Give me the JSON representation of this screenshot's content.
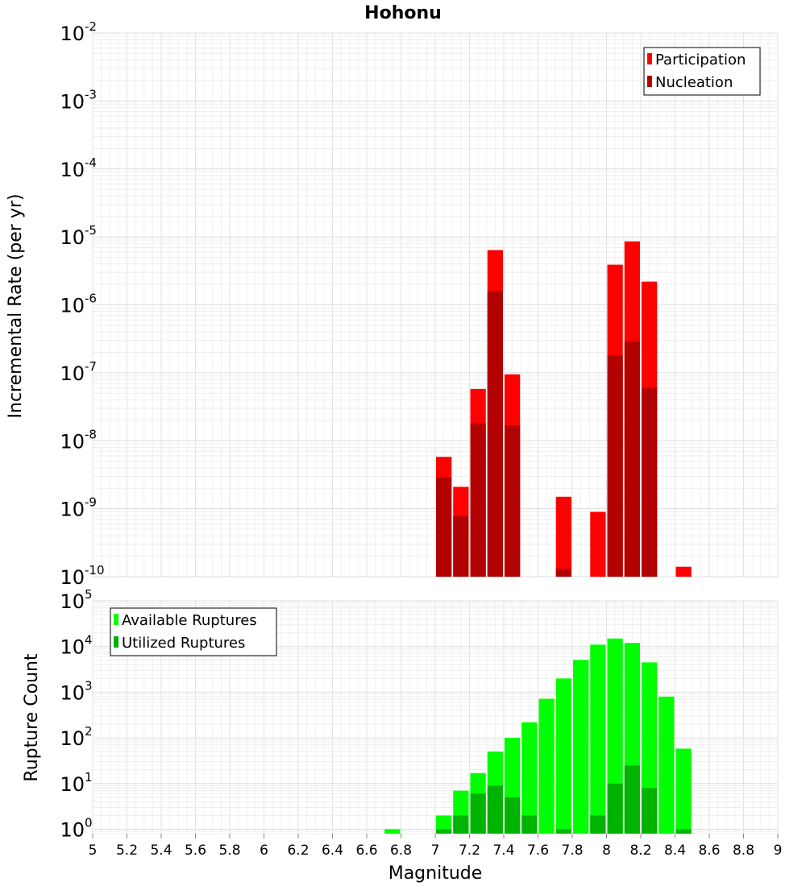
{
  "chart_data": [
    {
      "type": "bar",
      "title": "Hohonu",
      "ylabel": "Incremental Rate (per yr)",
      "xlabel": "",
      "xlim": [
        5,
        9
      ],
      "ylim": [
        1e-10,
        0.01
      ],
      "yscale": "log",
      "bin_width": 0.1,
      "legend_position": "top-right",
      "grid": true,
      "x": [
        7.05,
        7.15,
        7.25,
        7.35,
        7.45,
        7.75,
        7.95,
        8.05,
        8.15,
        8.25,
        8.45
      ],
      "series": [
        {
          "name": "Participation",
          "color": "#ff0000",
          "values": [
            5.8e-09,
            2.1e-09,
            5.8e-08,
            6.4e-06,
            9.5e-08,
            1.5e-09,
            9e-10,
            3.9e-06,
            8.6e-06,
            2.2e-06,
            1.4e-10
          ]
        },
        {
          "name": "Nucleation",
          "color": "#b30000",
          "values": [
            2.9e-09,
            7.8e-10,
            1.8e-08,
            1.6e-06,
            1.7e-08,
            1.3e-10,
            0,
            1.8e-07,
            2.9e-07,
            6e-08,
            0
          ]
        }
      ],
      "y_ticks": [
        {
          "base": "10",
          "exp": "-10"
        },
        {
          "base": "10",
          "exp": "-9"
        },
        {
          "base": "10",
          "exp": "-8"
        },
        {
          "base": "10",
          "exp": "-7"
        },
        {
          "base": "10",
          "exp": "-6"
        },
        {
          "base": "10",
          "exp": "-5"
        },
        {
          "base": "10",
          "exp": "-4"
        },
        {
          "base": "10",
          "exp": "-3"
        },
        {
          "base": "10",
          "exp": "-2"
        }
      ]
    },
    {
      "type": "bar",
      "title": "",
      "ylabel": "Rupture Count",
      "xlabel": "Magnitude",
      "xlim": [
        5,
        9
      ],
      "ylim": [
        0.8,
        100000.0
      ],
      "yscale": "log",
      "bin_width": 0.1,
      "legend_position": "top-left",
      "grid": true,
      "x": [
        6.75,
        7.05,
        7.15,
        7.25,
        7.35,
        7.45,
        7.55,
        7.65,
        7.75,
        7.85,
        7.95,
        8.05,
        8.15,
        8.25,
        8.35,
        8.45
      ],
      "series": [
        {
          "name": "Available Ruptures",
          "color": "#00ff00",
          "values": [
            1,
            2,
            7,
            17,
            50,
            100,
            220,
            720,
            2000,
            5100,
            11000,
            15000,
            12000,
            4500,
            800,
            58
          ]
        },
        {
          "name": "Utilized Ruptures",
          "color": "#00b300",
          "values": [
            0,
            1,
            2,
            6,
            9,
            5,
            2,
            0,
            1,
            0,
            2,
            10,
            25,
            8,
            0,
            1
          ]
        }
      ],
      "y_ticks": [
        {
          "base": "10",
          "exp": "0"
        },
        {
          "base": "10",
          "exp": "1"
        },
        {
          "base": "10",
          "exp": "2"
        },
        {
          "base": "10",
          "exp": "3"
        },
        {
          "base": "10",
          "exp": "4"
        },
        {
          "base": "10",
          "exp": "5"
        }
      ],
      "x_ticks": [
        "5",
        "5.2",
        "5.4",
        "5.6",
        "5.8",
        "6",
        "6.2",
        "6.4",
        "6.6",
        "6.8",
        "7",
        "7.2",
        "7.4",
        "7.6",
        "7.8",
        "8",
        "8.2",
        "8.4",
        "8.6",
        "8.8",
        "9"
      ]
    }
  ]
}
